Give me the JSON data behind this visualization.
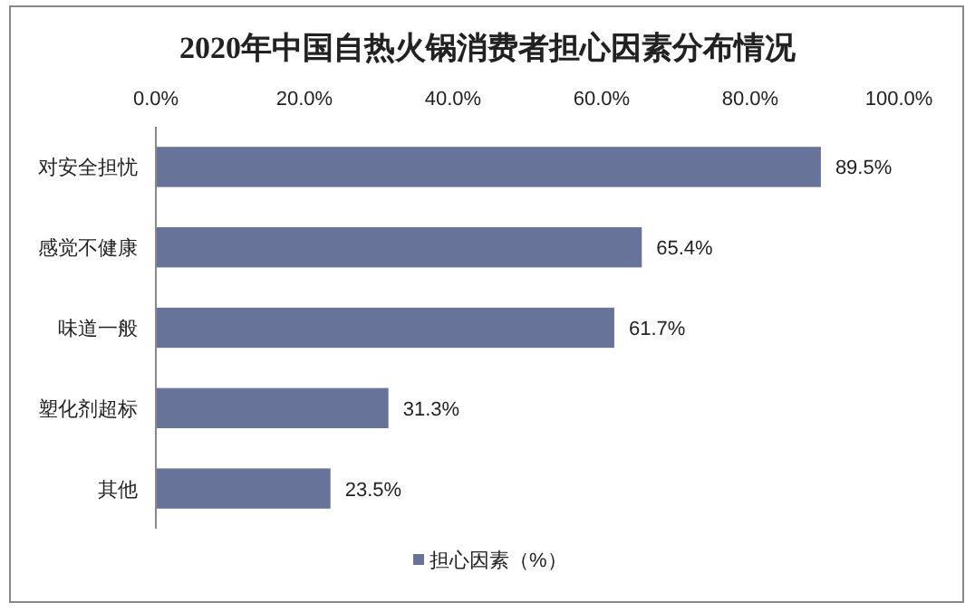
{
  "chart_data": {
    "type": "bar",
    "orientation": "horizontal",
    "title": "2020年中国自热火锅消费者担心因素分布情况",
    "categories": [
      "对安全担忧",
      "感觉不健康",
      "味道一般",
      "塑化剂超标",
      "其他"
    ],
    "series": [
      {
        "name": "担心因素（%）",
        "color": "#68739a",
        "values": [
          89.5,
          65.4,
          61.7,
          31.3,
          23.5
        ],
        "value_labels": [
          "89.5%",
          "65.4%",
          "61.7%",
          "31.3%",
          "23.5%"
        ]
      }
    ],
    "xlim": [
      0,
      100
    ],
    "xticks": [
      {
        "value": 0,
        "label": "0.0%"
      },
      {
        "value": 20,
        "label": "20.0%"
      },
      {
        "value": 40,
        "label": "40.0%"
      },
      {
        "value": 60,
        "label": "60.0%"
      },
      {
        "value": 80,
        "label": "80.0%"
      },
      {
        "value": 100,
        "label": "100.0%"
      }
    ],
    "grid": false,
    "legend": "bottom"
  }
}
